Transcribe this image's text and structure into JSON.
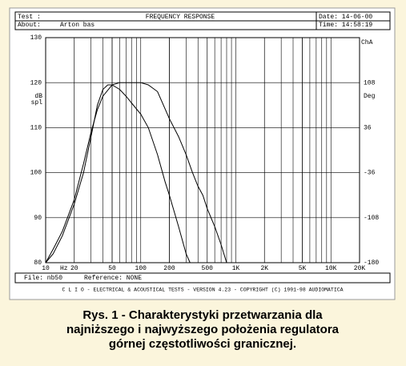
{
  "header": {
    "test_label": "Test :",
    "date": "Date: 14-06-00",
    "about_label": "About:",
    "about": "Arton bas",
    "time": "Time: 14:58:19"
  },
  "footer": {
    "file": "File: nb50",
    "reference": "Reference: NONE",
    "copyright": "C L I O  -  ELECTRICAL & ACOUSTICAL TESTS  -  VERSION 4.23  -  COPYRIGHT (C) 1991-98 AUDIOMATICA"
  },
  "caption": [
    "Rys. 1 - Charakterystyki przetwarzania dla",
    "najniższego i najwyższego położenia regulatora",
    "górnej częstotliwości granicznej."
  ],
  "chart_data": {
    "type": "line",
    "title": "FREQUENCY RESPONSE",
    "ylabel": [
      "dB",
      "spl"
    ],
    "y2label": "Deg",
    "xlabel": "Hz",
    "channel": "ChA",
    "log_x": true,
    "grid": true,
    "minor_grid": true,
    "xlim": [
      10,
      20000
    ],
    "xticks": [
      10,
      20,
      50,
      100,
      200,
      500,
      {
        "value": 1000,
        "label": "1K"
      },
      {
        "value": 2000,
        "label": "2K"
      },
      {
        "value": 5000,
        "label": "5K"
      },
      {
        "value": 10000,
        "label": "10K"
      },
      {
        "value": 20000,
        "label": "20K"
      }
    ],
    "ylim": [
      80,
      130
    ],
    "yticks": [
      80,
      90,
      100,
      110,
      120,
      130
    ],
    "y2lim": [
      -180,
      180
    ],
    "y2ticks": [
      -180,
      -108,
      -36,
      36,
      108
    ],
    "series": [
      {
        "color": "#000000",
        "x": [
          10,
          12,
          15,
          20,
          25,
          30,
          35,
          40,
          45,
          50,
          60,
          70,
          80,
          100,
          120,
          150,
          180,
          200,
          250,
          300,
          330
        ],
        "y": [
          80,
          82,
          86,
          93,
          100,
          108,
          115,
          118.5,
          119.5,
          119.5,
          118.5,
          117,
          115.5,
          113,
          110,
          104,
          98,
          95,
          88,
          82,
          80
        ]
      },
      {
        "color": "#000000",
        "x": [
          10,
          12,
          15,
          20,
          25,
          30,
          35,
          40,
          50,
          60,
          80,
          100,
          120,
          150,
          200,
          250,
          300,
          350,
          400,
          450,
          500,
          600,
          700,
          800
        ],
        "y": [
          80,
          83,
          87,
          94,
          102,
          109,
          114,
          117,
          119.5,
          120,
          120,
          120,
          119.5,
          118,
          112,
          108,
          104,
          100,
          97,
          95,
          92,
          88,
          84,
          80
        ]
      }
    ]
  }
}
